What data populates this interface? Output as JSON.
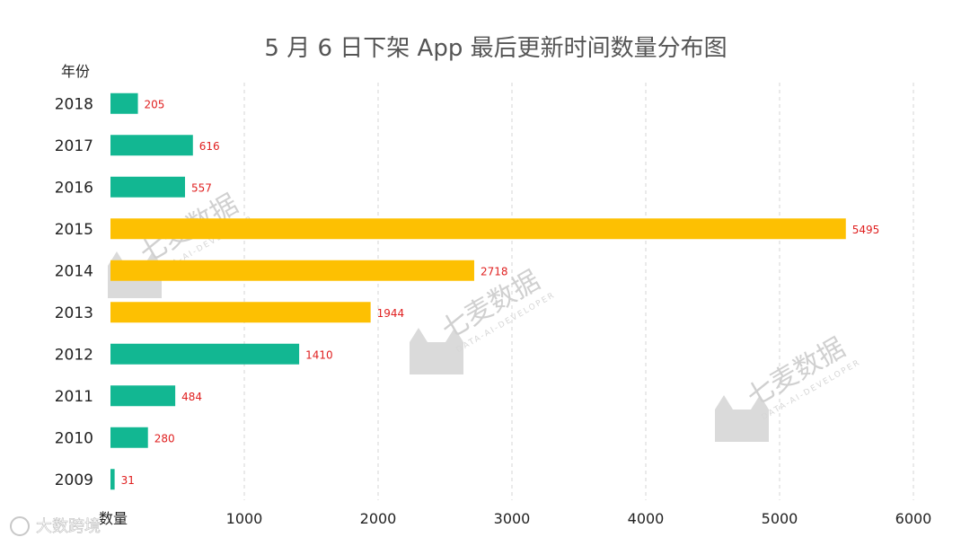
{
  "chart_data": {
    "type": "bar",
    "orientation": "horizontal",
    "title": "5 月 6 日下架 App 最后更新时间数量分布图",
    "ylabel": "年份",
    "xlabel": "数量",
    "xlim": [
      0,
      6000
    ],
    "xticks": [
      1000,
      2000,
      3000,
      4000,
      5000,
      6000
    ],
    "grid": true,
    "categories": [
      "2018",
      "2017",
      "2016",
      "2015",
      "2014",
      "2013",
      "2012",
      "2011",
      "2010",
      "2009"
    ],
    "values": [
      205,
      616,
      557,
      5495,
      2718,
      1944,
      1410,
      484,
      280,
      31
    ],
    "highlight": [
      false,
      false,
      false,
      true,
      true,
      true,
      false,
      false,
      false,
      false
    ],
    "colors": {
      "normal": "#12b792",
      "highlight": "#fdc002",
      "label": "#e02020"
    }
  },
  "watermark": {
    "text": "七麦数据",
    "subtext": "DATA-AI-DEVELOPER",
    "footer": "大数跨境"
  }
}
